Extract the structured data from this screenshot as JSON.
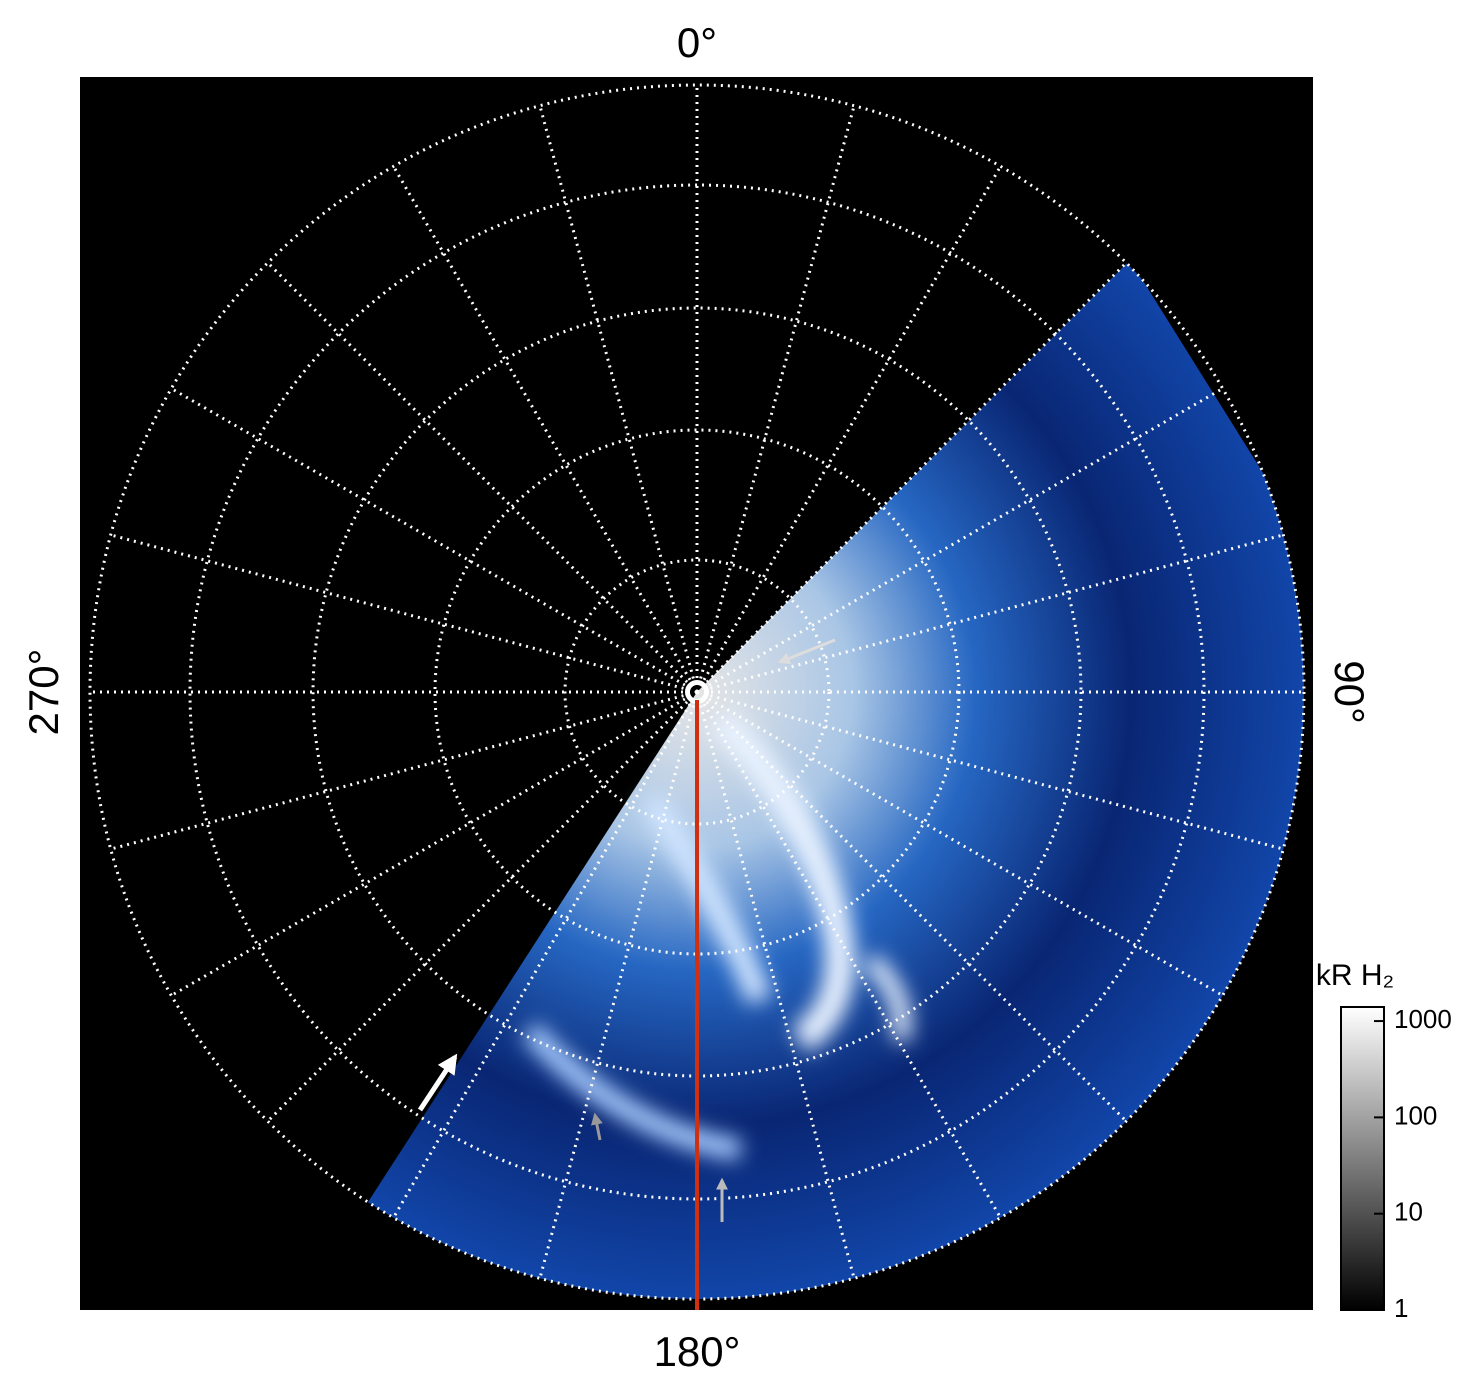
{
  "labels": {
    "top": "0°",
    "right": "90°",
    "bottom": "180°",
    "left": "270°"
  },
  "colorbar": {
    "title": "kR H₂",
    "scale": "log",
    "range": [
      1,
      1400
    ],
    "ticks": [
      1,
      10,
      100,
      1000
    ]
  }
}
